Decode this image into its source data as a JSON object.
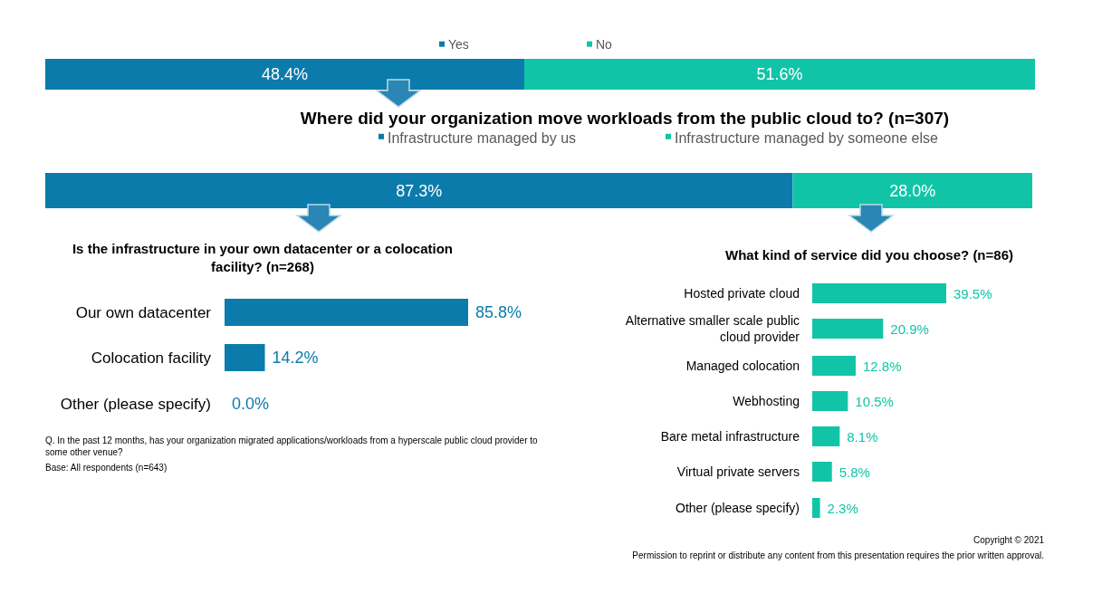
{
  "chart_data": [
    {
      "type": "bar",
      "orientation": "horizontal",
      "stacked": true,
      "categories": [
        null
      ],
      "legend": "top",
      "series": [
        {
          "name": "Yes",
          "color": "#0b7bab",
          "values": [
            48.4
          ],
          "value_labels": [
            "48.4%"
          ]
        },
        {
          "name": "No",
          "color": "#12c4a7",
          "values": [
            51.6
          ],
          "value_labels": [
            "51.6%"
          ]
        }
      ]
    },
    {
      "type": "bar",
      "orientation": "horizontal",
      "stacked": true,
      "title": "Where did your organization move workloads from the public cloud to? (n=307)",
      "categories": [
        null
      ],
      "legend": "top",
      "series": [
        {
          "name": "Infrastructure managed by us",
          "color": "#0b7bab",
          "values": [
            87.3
          ],
          "value_labels": [
            "87.3%"
          ]
        },
        {
          "name": "Infrastructure managed by someone else",
          "color": "#12c4a7",
          "values": [
            28.0
          ],
          "value_labels": [
            "28.0%"
          ]
        }
      ]
    },
    {
      "type": "bar",
      "orientation": "horizontal",
      "title": "Is the infrastructure in your own datacenter or a colocation facility? (n=268)",
      "categories": [
        "Our own datacenter",
        "Colocation facility",
        "Other (please specify)"
      ],
      "values": [
        85.8,
        14.2,
        0.0
      ],
      "value_labels": [
        "85.8%",
        "14.2%",
        "0.0%"
      ],
      "color": "#0b7bab",
      "annotations": [
        "Q. In the past 12 months, has your organization migrated applications/workloads from a hyperscale public cloud provider to some other venue?",
        "Base: All respondents (n=643)"
      ]
    },
    {
      "type": "bar",
      "orientation": "horizontal",
      "title": "What kind of service did you choose? (n=86)",
      "categories": [
        "Hosted private cloud",
        "Alternative smaller scale public cloud provider",
        "Managed colocation",
        "Webhosting",
        "Bare metal infrastructure",
        "Virtual private servers",
        "Other (please specify)"
      ],
      "values": [
        39.5,
        20.9,
        12.8,
        10.5,
        8.1,
        5.8,
        2.3
      ],
      "value_labels": [
        "39.5%",
        "20.9%",
        "12.8%",
        "10.5%",
        "8.1%",
        "5.8%",
        "2.3%"
      ],
      "color": "#12c4a7",
      "annotations": [
        "Copyright © 2021",
        "Permission to reprint or distribute any content from this presentation requires the prior written approval."
      ]
    }
  ]
}
